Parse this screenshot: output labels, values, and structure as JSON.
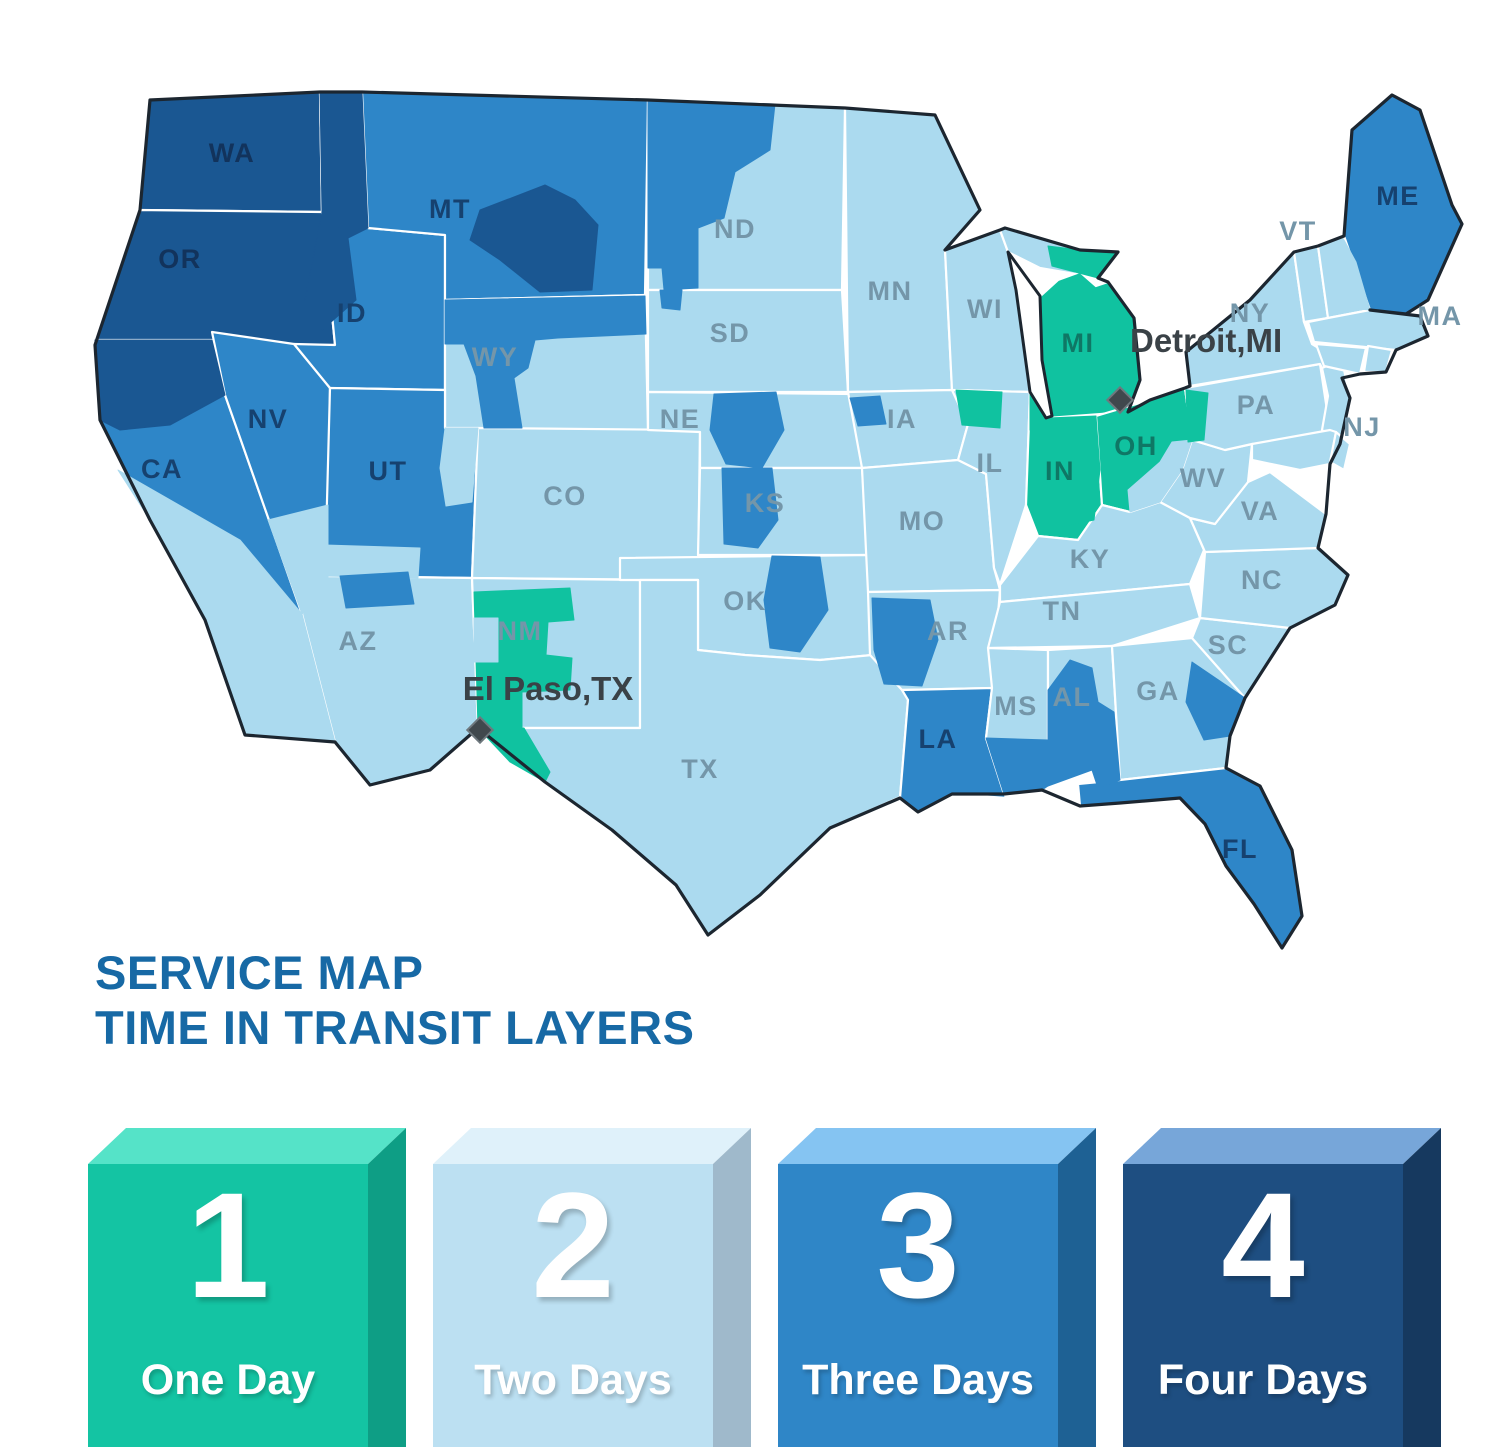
{
  "title": {
    "line1": "SERVICE MAP",
    "line2": "TIME IN TRANSIT LAYERS"
  },
  "markers": [
    {
      "id": "detroit",
      "label": "Detroit,MI"
    },
    {
      "id": "elpaso",
      "label": "El Paso,TX"
    }
  ],
  "legend": [
    {
      "number": "1",
      "label": "One Day",
      "front": "#14C4A3",
      "top": "#55E3C8",
      "side": "#0E9E85"
    },
    {
      "number": "2",
      "label": "Two Days",
      "front": "#BCE0F2",
      "top": "#DFF1FA",
      "side": "#9FB9CB"
    },
    {
      "number": "3",
      "label": "Three Days",
      "front": "#2F86C7",
      "top": "#85C4F2",
      "side": "#1E6194"
    },
    {
      "number": "4",
      "label": "Four Days",
      "front": "#1E4E81",
      "top": "#77A6D9",
      "side": "#16395F"
    }
  ],
  "map": {
    "day_colors": {
      "1": "#10C2A0",
      "2": "#ABDAEF",
      "3": "#2E86C8",
      "4": "#1A5792"
    },
    "label_colors": {
      "1": "#0F7765",
      "2": "#7496A9",
      "3": "#16416F",
      "4": "#12335C"
    },
    "border_color": "#1C2630",
    "state_line_color": "#FFFFFF",
    "marker_color": "#40484D",
    "marker_label_color": "#3A4247",
    "states": [
      {
        "abbr": "WA",
        "days": 4,
        "labeled": true
      },
      {
        "abbr": "OR",
        "days": 4,
        "labeled": true
      },
      {
        "abbr": "CA",
        "days": 3,
        "labeled": true
      },
      {
        "abbr": "NV",
        "days": 3,
        "labeled": true
      },
      {
        "abbr": "ID",
        "days": 3,
        "labeled": true
      },
      {
        "abbr": "MT",
        "days": 3,
        "labeled": true
      },
      {
        "abbr": "WY",
        "days": 2,
        "labeled": true
      },
      {
        "abbr": "UT",
        "days": 3,
        "labeled": true
      },
      {
        "abbr": "AZ",
        "days": 2,
        "labeled": true
      },
      {
        "abbr": "CO",
        "days": 2,
        "labeled": true
      },
      {
        "abbr": "NM",
        "days": 2,
        "labeled": true
      },
      {
        "abbr": "ND",
        "days": 2,
        "labeled": true
      },
      {
        "abbr": "SD",
        "days": 2,
        "labeled": true
      },
      {
        "abbr": "NE",
        "days": 2,
        "labeled": true
      },
      {
        "abbr": "KS",
        "days": 2,
        "labeled": true
      },
      {
        "abbr": "OK",
        "days": 2,
        "labeled": true
      },
      {
        "abbr": "TX",
        "days": 2,
        "labeled": true
      },
      {
        "abbr": "MN",
        "days": 2,
        "labeled": true
      },
      {
        "abbr": "IA",
        "days": 2,
        "labeled": true
      },
      {
        "abbr": "MO",
        "days": 2,
        "labeled": true
      },
      {
        "abbr": "AR",
        "days": 2,
        "labeled": true
      },
      {
        "abbr": "LA",
        "days": 3,
        "labeled": true
      },
      {
        "abbr": "WI",
        "days": 2,
        "labeled": true
      },
      {
        "abbr": "IL",
        "days": 2,
        "labeled": true
      },
      {
        "abbr": "MS",
        "days": 2,
        "labeled": true
      },
      {
        "abbr": "MI_UP",
        "days": 2,
        "labeled": false
      },
      {
        "abbr": "MI",
        "days": 1,
        "labeled": true
      },
      {
        "abbr": "IN",
        "days": 1,
        "labeled": true
      },
      {
        "abbr": "OH",
        "days": 1,
        "labeled": true
      },
      {
        "abbr": "KY",
        "days": 2,
        "labeled": true
      },
      {
        "abbr": "TN",
        "days": 2,
        "labeled": true
      },
      {
        "abbr": "AL",
        "days": 2,
        "labeled": true
      },
      {
        "abbr": "GA",
        "days": 2,
        "labeled": true
      },
      {
        "abbr": "FL",
        "days": 3,
        "labeled": true
      },
      {
        "abbr": "SC",
        "days": 2,
        "labeled": true
      },
      {
        "abbr": "NC",
        "days": 2,
        "labeled": true
      },
      {
        "abbr": "VA",
        "days": 2,
        "labeled": true
      },
      {
        "abbr": "WV",
        "days": 2,
        "labeled": true
      },
      {
        "abbr": "PA",
        "days": 2,
        "labeled": true
      },
      {
        "abbr": "NY",
        "days": 2,
        "labeled": true
      },
      {
        "abbr": "NJ",
        "days": 2,
        "labeled": true
      },
      {
        "abbr": "VT",
        "days": 2,
        "labeled": true
      },
      {
        "abbr": "NH",
        "days": 2,
        "labeled": false
      },
      {
        "abbr": "MA",
        "days": 2,
        "labeled": true
      },
      {
        "abbr": "CT",
        "days": 2,
        "labeled": false
      },
      {
        "abbr": "RI",
        "days": 2,
        "labeled": false
      },
      {
        "abbr": "ME",
        "days": 3,
        "labeled": true
      },
      {
        "abbr": "MD",
        "days": 2,
        "labeled": false
      },
      {
        "abbr": "DE",
        "days": 2,
        "labeled": false
      }
    ],
    "patches": [
      {
        "id": "ca-north",
        "days": 4
      },
      {
        "id": "ca-south",
        "days": 2
      },
      {
        "id": "nv-se",
        "days": 2
      },
      {
        "id": "id-panhandle",
        "days": 4
      },
      {
        "id": "id-central",
        "days": 4
      },
      {
        "id": "mt-east",
        "days": 4
      },
      {
        "id": "wy-west",
        "days": 3
      },
      {
        "id": "ut-e",
        "days": 2
      },
      {
        "id": "ut-s",
        "days": 2
      },
      {
        "id": "az-n",
        "days": 3
      },
      {
        "id": "nd-nw",
        "days": 3
      },
      {
        "id": "sd-tail",
        "days": 3
      },
      {
        "id": "ne-mid",
        "days": 3
      },
      {
        "id": "ia-w",
        "days": 3
      },
      {
        "id": "ks-ne",
        "days": 3
      },
      {
        "id": "ok-e",
        "days": 3
      },
      {
        "id": "ar-w",
        "days": 3
      },
      {
        "id": "ms-s",
        "days": 3
      },
      {
        "id": "al-s",
        "days": 3
      },
      {
        "id": "ga-se",
        "days": 3
      },
      {
        "id": "me-sw",
        "days": 2
      },
      {
        "id": "oh-se",
        "days": 2
      },
      {
        "id": "pa-w",
        "days": 1
      },
      {
        "id": "il-ne",
        "days": 1
      },
      {
        "id": "in-c",
        "days": 1
      },
      {
        "id": "up-e",
        "days": 1
      },
      {
        "id": "nm-teal",
        "days": 1
      },
      {
        "id": "nm-notch",
        "days": 2
      },
      {
        "id": "tx-w",
        "days": 1
      }
    ]
  }
}
